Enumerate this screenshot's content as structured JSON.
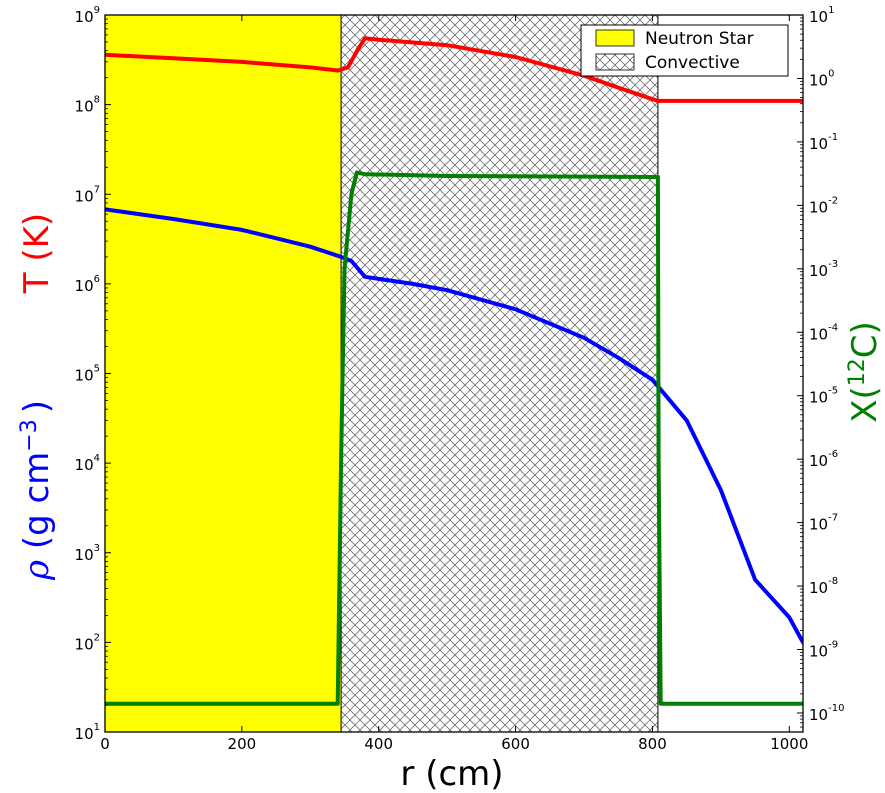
{
  "chart_data": {
    "type": "line",
    "xlabel": "r (cm)",
    "ylabel_left_top": "T (K)",
    "ylabel_left_bottom": {
      "symbol": "ρ",
      "text": " (g cm",
      "exp": "−3",
      "close": ")"
    },
    "ylabel_right": {
      "pre": "X(",
      "exp": "12",
      "post": "C)"
    },
    "xlim": [
      0,
      1020
    ],
    "x_ticks": [
      0,
      200,
      400,
      600,
      800,
      1000
    ],
    "left_axis": {
      "scale": "log",
      "base": 10,
      "ylim_exp": [
        1,
        9
      ],
      "tick_exps": [
        1,
        2,
        3,
        4,
        5,
        6,
        7,
        8,
        9
      ]
    },
    "right_axis": {
      "scale": "log",
      "base": 10,
      "ylim_exp": [
        -10.3,
        1
      ],
      "tick_exps": [
        -10,
        -9,
        -8,
        -7,
        -6,
        -5,
        -4,
        -3,
        -2,
        -1,
        0,
        1
      ]
    },
    "colors": {
      "temperature": "#ff0000",
      "density": "#0000ff",
      "carbon": "#007f00",
      "neutron_star": "#ffff00",
      "hatch": "#555555"
    },
    "legend": {
      "placement": "top-right",
      "entries": [
        {
          "label": "Neutron Star",
          "style": "filled-yellow"
        },
        {
          "label": "Convective",
          "style": "crosshatch"
        }
      ]
    },
    "regions": [
      {
        "name": "Neutron Star",
        "x_range": [
          0,
          345
        ]
      },
      {
        "name": "Convective",
        "x_range": [
          345,
          808
        ]
      }
    ],
    "series": [
      {
        "key": "temperature",
        "axis": "left",
        "x": [
          0,
          100,
          200,
          300,
          340,
          355,
          370,
          380,
          400,
          500,
          600,
          700,
          750,
          800,
          808,
          820,
          1000,
          1020
        ],
        "y": [
          360000000.0,
          330000000.0,
          300000000.0,
          260000000.0,
          240000000.0,
          260000000.0,
          420000000.0,
          550000000.0,
          530000000.0,
          460000000.0,
          340000000.0,
          210000000.0,
          155000000.0,
          115000000.0,
          110000000.0,
          110000000.0,
          110000000.0,
          110000000.0
        ]
      },
      {
        "key": "density",
        "axis": "left",
        "x": [
          0,
          100,
          200,
          300,
          345,
          360,
          380,
          450,
          500,
          600,
          700,
          750,
          800,
          850,
          900,
          950,
          1000,
          1020
        ],
        "y": [
          6800000.0,
          5300000.0,
          4000000.0,
          2600000.0,
          2000000.0,
          1800000.0,
          1200000.0,
          1000000.0,
          850000.0,
          520000.0,
          250000.0,
          150000.0,
          85000.0,
          30000.0,
          5000.0,
          500.0,
          190.0,
          100.0
        ]
      },
      {
        "key": "carbon",
        "axis": "right",
        "x": [
          0,
          340,
          345,
          350,
          360,
          368,
          380,
          500,
          808,
          809,
          812,
          1020
        ],
        "y": [
          1.4e-10,
          1.4e-10,
          1e-06,
          0.001,
          0.015,
          0.033,
          0.031,
          0.029,
          0.028,
          1e-06,
          1.4e-10,
          1.4e-10
        ]
      }
    ]
  }
}
